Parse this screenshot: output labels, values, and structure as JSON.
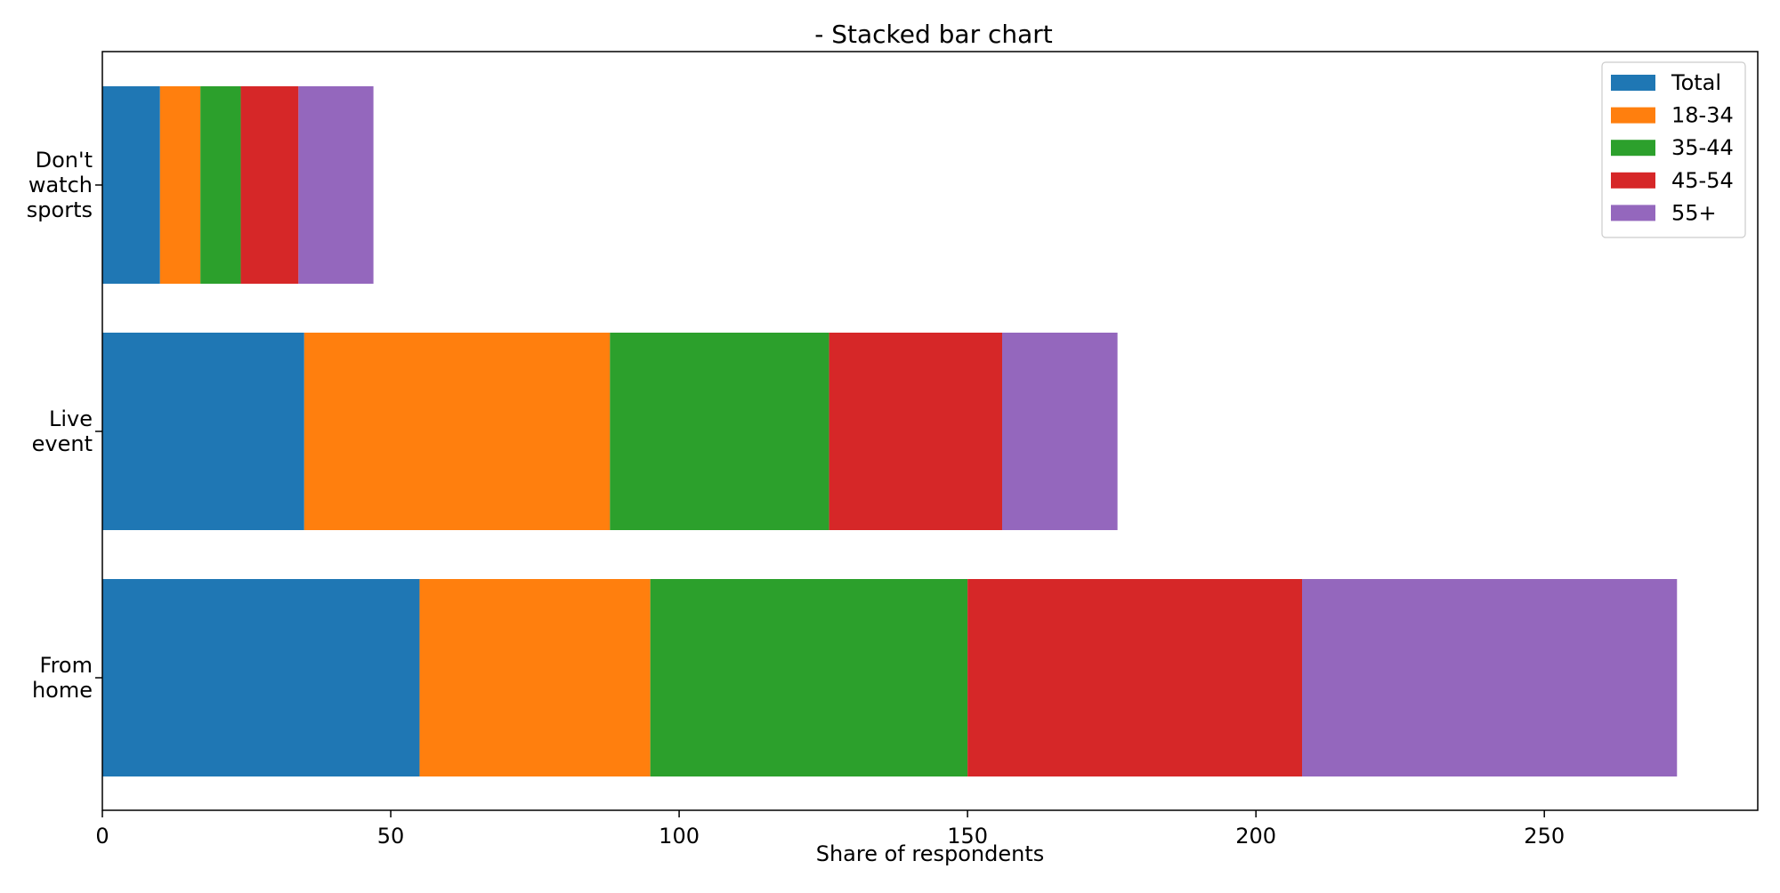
{
  "chart_data": {
    "type": "bar",
    "orientation": "horizontal",
    "stacked": true,
    "title": "- Stacked bar chart",
    "xlabel": "Share of respondents",
    "ylabel": "",
    "xlim": [
      0,
      287
    ],
    "xticks": [
      0,
      50,
      100,
      150,
      200,
      250
    ],
    "categories": [
      "From\nhome",
      "Live\nevent",
      "Don't\nwatch\nsports"
    ],
    "series": [
      {
        "name": "Total",
        "color": "#1f77b4",
        "values": [
          55,
          35,
          10
        ]
      },
      {
        "name": "18-34",
        "color": "#ff7f0e",
        "values": [
          40,
          53,
          7
        ]
      },
      {
        "name": "35-44",
        "color": "#2ca02c",
        "values": [
          55,
          38,
          7
        ]
      },
      {
        "name": "45-54",
        "color": "#d62728",
        "values": [
          58,
          30,
          10
        ]
      },
      {
        "name": "55+",
        "color": "#9467bd",
        "values": [
          65,
          20,
          13
        ]
      }
    ],
    "legend_position": "top-right",
    "grid": false
  }
}
